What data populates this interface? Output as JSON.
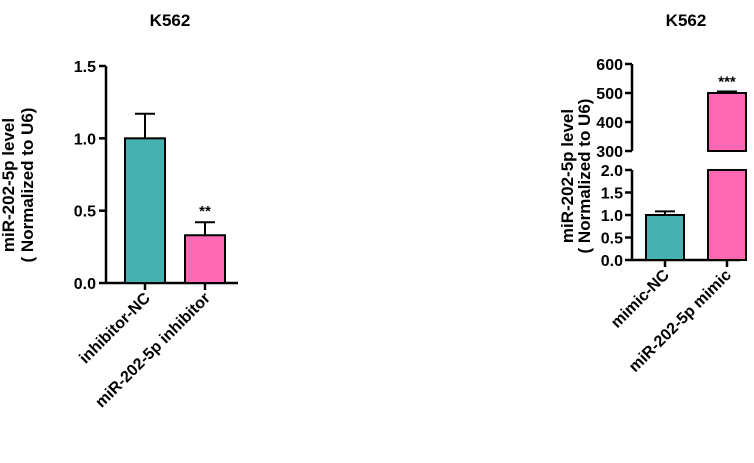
{
  "chart_data": [
    {
      "type": "bar",
      "title": "K562",
      "ylabel": [
        "miR-202-5p level",
        "( Normalized to U6)"
      ],
      "categories": [
        "inhibitor-NC",
        "miR-202-5p inhibitor"
      ],
      "values": [
        1.0,
        0.33
      ],
      "errors": [
        0.17,
        0.09
      ],
      "colors": [
        "#45b1b0",
        "#ff69b4"
      ],
      "significance": [
        "",
        "**"
      ],
      "ylim": [
        0,
        1.5
      ],
      "yticks": [
        0.0,
        0.5,
        1.0,
        1.5
      ],
      "ytick_labels": [
        "0.0",
        "0.5",
        "1.0",
        "1.5"
      ]
    },
    {
      "type": "bar",
      "title": "K562",
      "ylabel": [
        "miR-202-5p level",
        "( Normalized to U6)"
      ],
      "categories": [
        "mimic-NC",
        "miR-202-5p mimic"
      ],
      "values": [
        1.0,
        500
      ],
      "errors": [
        0.08,
        5
      ],
      "colors": [
        "#45b1b0",
        "#ff69b4"
      ],
      "significance": [
        "",
        "***"
      ],
      "broken_axis": true,
      "segments": [
        {
          "ylim": [
            0,
            2.0
          ],
          "yticks": [
            0.0,
            0.5,
            1.0,
            1.5,
            2.0
          ],
          "ytick_labels": [
            "0.0",
            "0.5",
            "1.0",
            "1.5",
            "2.0"
          ]
        },
        {
          "ylim": [
            300,
            600
          ],
          "yticks": [
            300,
            400,
            500,
            600
          ],
          "ytick_labels": [
            "300",
            "400",
            "500",
            "600"
          ]
        }
      ]
    }
  ]
}
